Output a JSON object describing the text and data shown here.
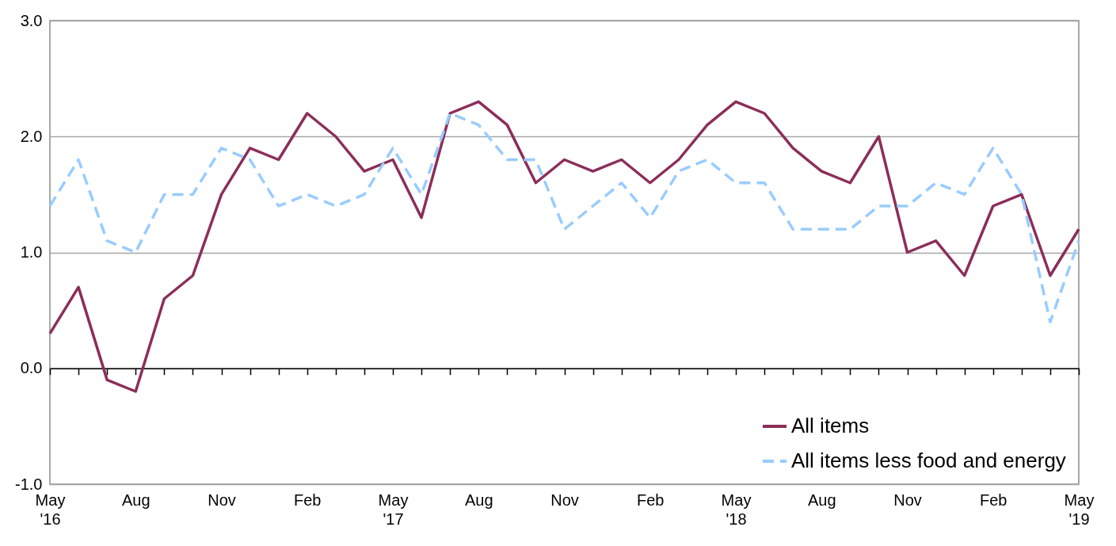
{
  "chart_data": {
    "type": "line",
    "categories": [
      "May\n'16",
      null,
      null,
      "Aug",
      null,
      null,
      "Nov",
      null,
      null,
      "Feb",
      null,
      null,
      "May\n'17",
      null,
      null,
      "Aug",
      null,
      null,
      "Nov",
      null,
      null,
      "Feb",
      null,
      null,
      "May\n'18",
      null,
      null,
      "Aug",
      null,
      null,
      "Nov",
      null,
      null,
      "Feb",
      null,
      null,
      "May\n'19"
    ],
    "series": [
      {
        "name": "All items",
        "color": "#8b2e5a",
        "line_style": "solid",
        "values": [
          0.3,
          0.7,
          -0.1,
          -0.2,
          0.6,
          0.8,
          1.5,
          1.9,
          1.8,
          2.2,
          2.0,
          1.7,
          1.8,
          1.3,
          2.2,
          2.3,
          2.1,
          1.6,
          1.8,
          1.7,
          1.8,
          1.6,
          1.8,
          2.1,
          2.3,
          2.2,
          1.9,
          1.7,
          1.6,
          2.0,
          1.0,
          1.1,
          0.8,
          1.4,
          1.5,
          0.8,
          1.2
        ]
      },
      {
        "name": "All items less food and energy",
        "color": "#99ccff",
        "line_style": "dashed",
        "values": [
          1.4,
          1.8,
          1.1,
          1.0,
          1.5,
          1.5,
          1.9,
          1.8,
          1.4,
          1.5,
          1.4,
          1.5,
          1.9,
          1.5,
          2.2,
          2.1,
          1.8,
          1.8,
          1.2,
          1.4,
          1.6,
          1.3,
          1.7,
          1.8,
          1.6,
          1.6,
          1.2,
          1.2,
          1.2,
          1.4,
          1.4,
          1.6,
          1.5,
          1.9,
          1.5,
          0.4,
          1.1
        ]
      }
    ],
    "ylim": [
      -1.0,
      3.0
    ],
    "yticks": [
      {
        "value": -1,
        "label": "-1.0"
      },
      {
        "value": 0,
        "label": "0.0"
      },
      {
        "value": 1,
        "label": "1.0"
      },
      {
        "value": 2,
        "label": "2.0"
      },
      {
        "value": 3,
        "label": "3.0"
      }
    ],
    "grid": "y",
    "legend": "bottom right",
    "marker": "none"
  }
}
